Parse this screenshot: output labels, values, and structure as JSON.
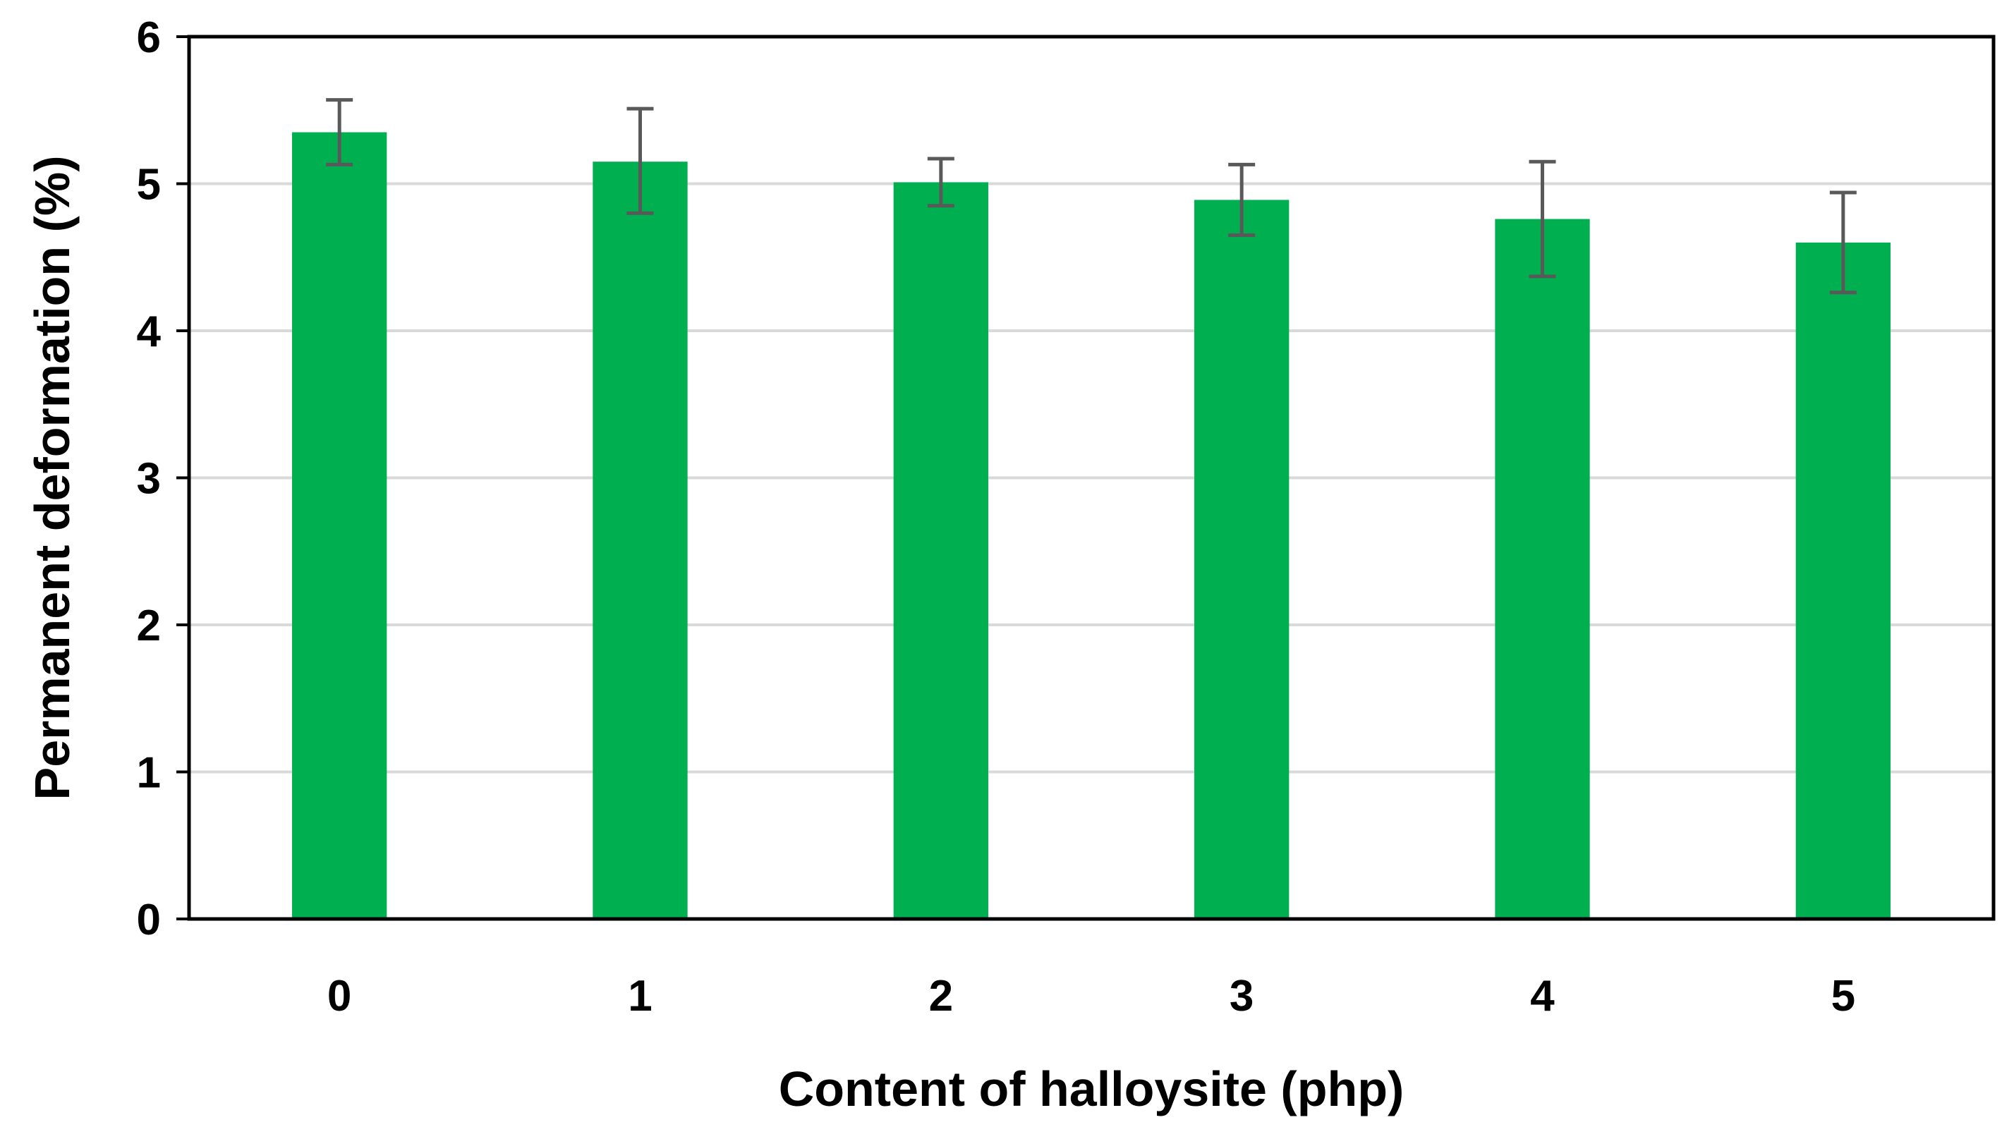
{
  "chart_data": {
    "type": "bar",
    "title": "",
    "xlabel": "Content of halloysite (php)",
    "ylabel": "Permanent deformation (%)",
    "categories": [
      "0",
      "1",
      "2",
      "3",
      "4",
      "5"
    ],
    "values": [
      5.35,
      5.15,
      5.01,
      4.89,
      4.76,
      4.6
    ],
    "error_low": [
      5.13,
      4.8,
      4.85,
      4.65,
      4.37,
      4.26
    ],
    "error_high": [
      5.57,
      5.51,
      5.17,
      5.13,
      5.15,
      4.94
    ],
    "ylim": [
      0,
      6
    ],
    "yticks": [
      "0",
      "1",
      "2",
      "3",
      "4",
      "5",
      "6"
    ],
    "grid": true,
    "legend": "none",
    "colors": {
      "bar": "#00b050",
      "error_bar": "#595959",
      "grid": "#d9d9d9",
      "axis": "#000000"
    }
  }
}
